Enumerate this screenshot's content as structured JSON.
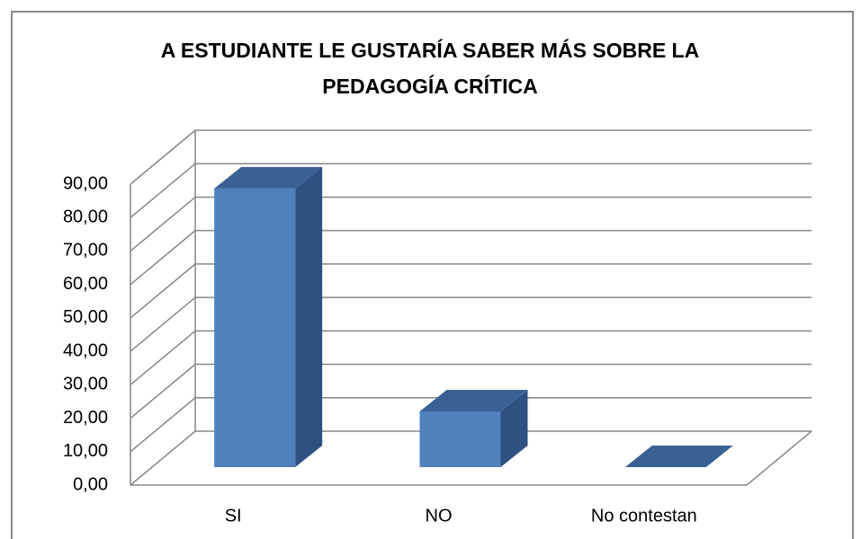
{
  "chart_data": {
    "type": "bar3d",
    "title": "A ESTUDIANTE LE GUSTARÍA SABER MÁS SOBRE LA PEDAGOGÍA CRÍTICA",
    "categories": [
      "SI",
      "NO",
      "No contestan"
    ],
    "values": [
      83.33,
      16.67,
      0
    ],
    "color": "#4f81bd",
    "ylim": [
      0,
      90
    ],
    "yticks": [
      {
        "value": 0,
        "label": "0,00"
      },
      {
        "value": 10,
        "label": "10,00"
      },
      {
        "value": 20,
        "label": "20,00"
      },
      {
        "value": 30,
        "label": "30,00"
      },
      {
        "value": 40,
        "label": "40,00"
      },
      {
        "value": 50,
        "label": "50,00"
      },
      {
        "value": 60,
        "label": "60,00"
      },
      {
        "value": 70,
        "label": "70,00"
      },
      {
        "value": 80,
        "label": "80,00"
      },
      {
        "value": 90,
        "label": "90,00"
      }
    ],
    "grid": true
  }
}
